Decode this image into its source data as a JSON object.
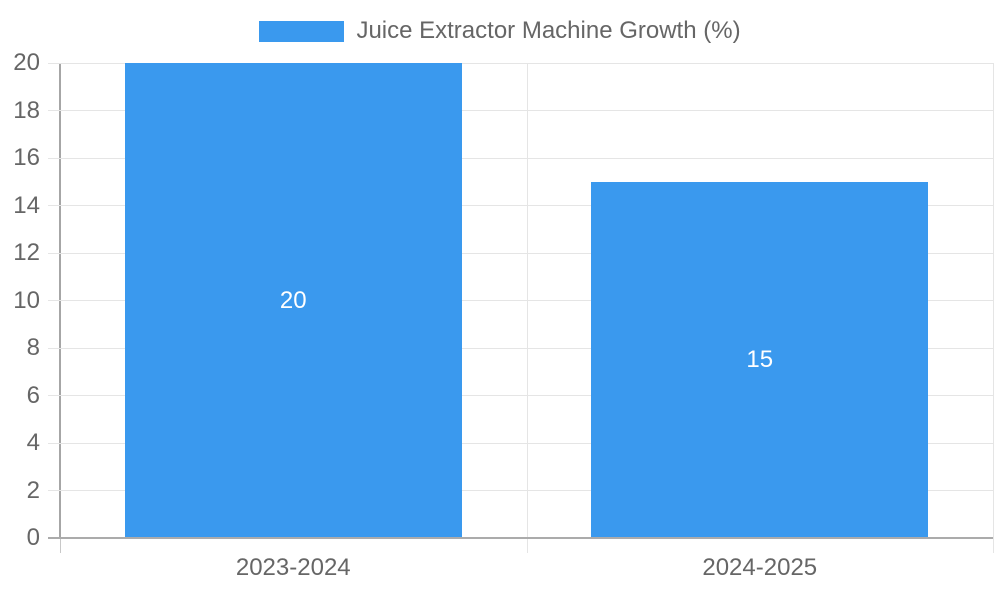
{
  "chart_data": {
    "type": "bar",
    "title": "Juice Extractor Machine Growth (%)",
    "categories": [
      "2023-2024",
      "2024-2025"
    ],
    "values": [
      20,
      15
    ],
    "data_labels": [
      "20",
      "15"
    ],
    "ytick_labels": [
      "0",
      "2",
      "4",
      "6",
      "8",
      "10",
      "12",
      "14",
      "16",
      "18",
      "20"
    ],
    "yticks": [
      0,
      2,
      4,
      6,
      8,
      10,
      12,
      14,
      16,
      18,
      20
    ],
    "ylim": [
      0,
      20
    ],
    "xlabel": "",
    "ylabel": "",
    "grid": true,
    "legend_position": "top",
    "data_label_position": "center"
  },
  "colors": {
    "bar": "#3A99EE",
    "text": "#666666",
    "grid": "#e5e5e5",
    "axis": "#ababab",
    "data_label": "#ffffff",
    "background": "#ffffff"
  }
}
